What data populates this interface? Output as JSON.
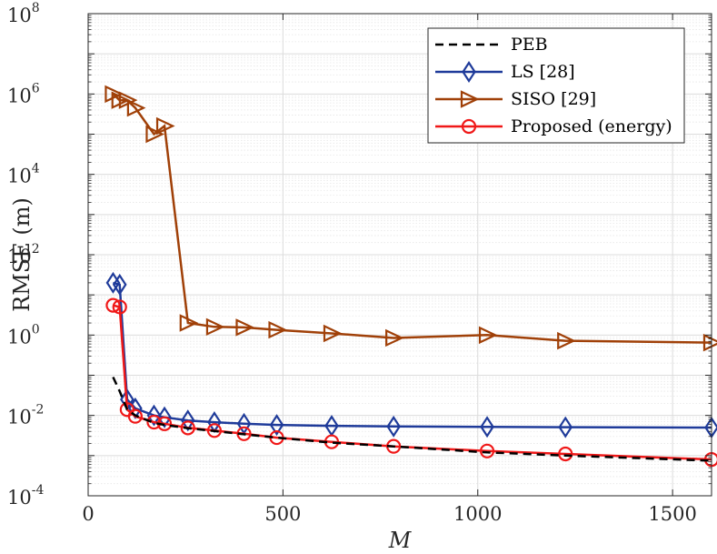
{
  "chart_data": {
    "type": "line",
    "title": "",
    "xlabel": "M",
    "ylabel": "RMSE (m)",
    "xlim": [
      0,
      1600
    ],
    "ylim_log10": [
      -4,
      8
    ],
    "yscale": "log",
    "grid": true,
    "legend_position": "top-right",
    "x_ticks": [
      {
        "value": 0,
        "label": "0"
      },
      {
        "value": 500,
        "label": "500"
      },
      {
        "value": 1000,
        "label": "1000"
      },
      {
        "value": 1500,
        "label": "1500"
      }
    ],
    "y_ticks": [
      {
        "exp": -4,
        "base": "10",
        "sup": "-4"
      },
      {
        "exp": -2,
        "base": "10",
        "sup": "-2"
      },
      {
        "exp": 0,
        "base": "10",
        "sup": "0"
      },
      {
        "exp": 2,
        "base": "10",
        "sup": "2"
      },
      {
        "exp": 4,
        "base": "10",
        "sup": "4"
      },
      {
        "exp": 6,
        "base": "10",
        "sup": "6"
      },
      {
        "exp": 8,
        "base": "10",
        "sup": "8"
      }
    ],
    "series": [
      {
        "name": "PEB",
        "color": "#000000",
        "style": "dashed",
        "marker": "none",
        "x": [
          64,
          81,
          100,
          121,
          169,
          196,
          256,
          324,
          400,
          484,
          625,
          784,
          1024,
          1225,
          1600
        ],
        "y": [
          0.09,
          0.04,
          0.014,
          0.01,
          0.0065,
          0.0058,
          0.0048,
          0.0041,
          0.0034,
          0.0028,
          0.0021,
          0.0017,
          0.0012,
          0.001,
          0.00075
        ]
      },
      {
        "name": "LS [28]",
        "color": "#1f3b9a",
        "style": "solid",
        "marker": "diamond",
        "x": [
          64,
          81,
          100,
          121,
          169,
          196,
          256,
          324,
          400,
          484,
          625,
          784,
          1024,
          1225,
          1600
        ],
        "y": [
          20,
          18,
          0.025,
          0.015,
          0.01,
          0.009,
          0.0075,
          0.0068,
          0.0062,
          0.0058,
          0.0055,
          0.0053,
          0.0052,
          0.0051,
          0.005
        ]
      },
      {
        "name": "SISO [29]",
        "color": "#a04008",
        "style": "solid",
        "marker": "triangle-right",
        "x": [
          64,
          81,
          100,
          121,
          169,
          196,
          256,
          324,
          400,
          484,
          625,
          784,
          1024,
          1225,
          1600
        ],
        "y": [
          1000000,
          700000,
          700000,
          450000,
          100000,
          160000,
          2.0,
          1.6,
          1.55,
          1.35,
          1.1,
          0.85,
          1.0,
          0.72,
          0.65
        ]
      },
      {
        "name": "Proposed (energy)",
        "color": "#f01818",
        "style": "solid",
        "marker": "circle",
        "x": [
          64,
          81,
          100,
          121,
          169,
          196,
          256,
          324,
          400,
          484,
          625,
          784,
          1024,
          1225,
          1600
        ],
        "y": [
          5.5,
          5.0,
          0.014,
          0.0095,
          0.0068,
          0.0062,
          0.0049,
          0.0042,
          0.0035,
          0.0028,
          0.0022,
          0.0017,
          0.0013,
          0.0011,
          0.0008
        ]
      }
    ]
  }
}
